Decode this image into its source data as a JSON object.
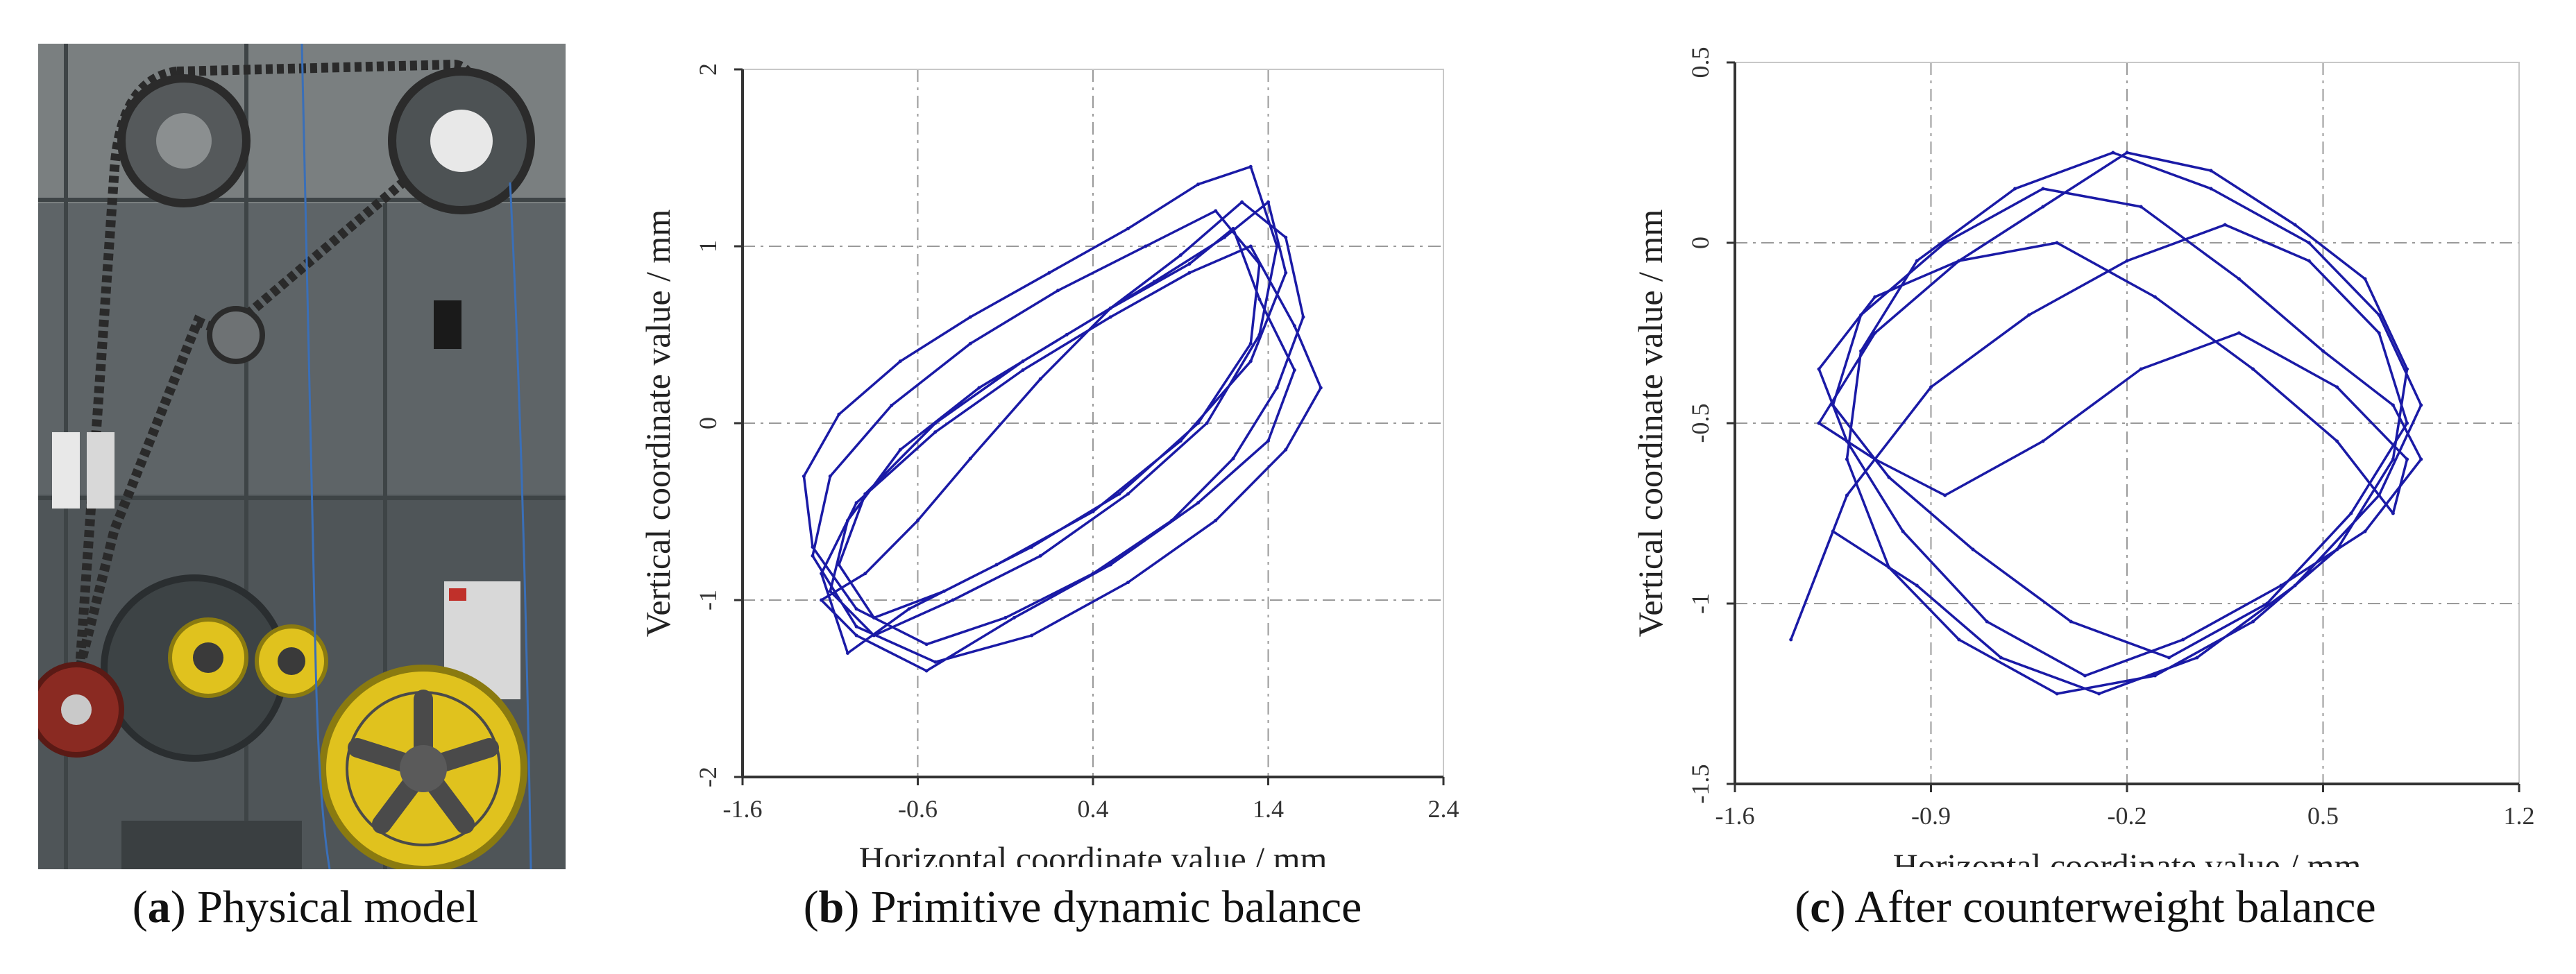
{
  "figure": {
    "panels": [
      {
        "letter": "a",
        "caption": "Physical model"
      },
      {
        "letter": "b",
        "caption": "Primitive dynamic balance"
      },
      {
        "letter": "c",
        "caption": "After counterweight balance"
      }
    ]
  },
  "colors": {
    "trace": "#1a1aa6",
    "grid": "#9a9a9a",
    "axis": "#333333",
    "machine_body": "#5d6366",
    "pulley_yellow": "#e0c21e",
    "pulley_red": "#8a2a22"
  },
  "chart_data": [
    {
      "type": "line",
      "panel": "b",
      "xlabel": "Horizontal coordinate value / mm",
      "ylabel": "Vertical coordinate value / mm",
      "xlim": [
        -1.6,
        2.4
      ],
      "ylim": [
        -2,
        2
      ],
      "xticks": [
        "-1.6",
        "-0.6",
        "0.4",
        "1.4",
        "2.4"
      ],
      "yticks": [
        "-2",
        "-1",
        "0",
        "1",
        "2"
      ],
      "grid": true,
      "series": [
        {
          "x": [
            -1.15,
            -0.9,
            -0.6,
            -0.3,
            0.1,
            0.5,
            0.9,
            1.25,
            1.5,
            1.6,
            1.45,
            1.2,
            0.85,
            0.4,
            -0.1,
            -0.55,
            -0.95,
            -1.2,
            -1.25,
            -1.05,
            -0.7,
            -0.3,
            0.15,
            0.6,
            1.0,
            1.3,
            1.45,
            1.35,
            1.05,
            0.6,
            0.1,
            -0.4,
            -0.85,
            -1.1,
            -1.0,
            -0.7,
            -0.25,
            0.25,
            0.75,
            1.15,
            1.4,
            1.5,
            1.3,
            0.9,
            0.4,
            -0.15,
            -0.65,
            -1.0,
            -1.15,
            -0.95,
            -0.5,
            0.0,
            0.5,
            0.95,
            1.3,
            1.55,
            1.7,
            1.5,
            1.1,
            0.6,
            0.05,
            -0.5,
            -0.95,
            -1.2,
            -1.1,
            -0.75,
            -0.3,
            0.2,
            0.7,
            1.1,
            1.35,
            1.3,
            1.0,
            0.55,
            0.05,
            -0.45,
            -0.85,
            -1.05,
            -0.9,
            -0.5,
            0.0,
            0.5,
            0.95,
            1.2,
            1.35,
            1.55,
            1.4,
            1.0,
            0.5,
            -0.05,
            -0.55,
            -0.95,
            -1.15
          ],
          "y": [
            -1.0,
            -0.85,
            -0.55,
            -0.2,
            0.25,
            0.65,
            0.95,
            1.25,
            1.05,
            0.6,
            0.2,
            -0.2,
            -0.55,
            -0.85,
            -1.1,
            -1.25,
            -1.05,
            -0.7,
            -0.3,
            0.05,
            0.35,
            0.6,
            0.85,
            1.1,
            1.35,
            1.45,
            1.0,
            0.5,
            0.0,
            -0.4,
            -0.75,
            -1.0,
            -1.2,
            -0.95,
            -0.55,
            -0.15,
            0.2,
            0.5,
            0.8,
            1.05,
            1.25,
            0.85,
            0.35,
            -0.1,
            -0.5,
            -0.8,
            -1.05,
            -1.3,
            -0.85,
            -0.45,
            -0.05,
            0.3,
            0.6,
            0.85,
            1.0,
            0.55,
            0.2,
            -0.15,
            -0.55,
            -0.9,
            -1.2,
            -1.35,
            -1.15,
            -0.75,
            -0.3,
            0.1,
            0.45,
            0.75,
            1.0,
            1.2,
            0.9,
            0.45,
            0.0,
            -0.4,
            -0.7,
            -0.95,
            -1.1,
            -0.8,
            -0.4,
            0.0,
            0.35,
            0.65,
            0.9,
            1.1,
            0.7,
            0.3,
            -0.1,
            -0.45,
            -0.8,
            -1.1,
            -1.4,
            -1.2,
            -1.0
          ]
        }
      ]
    },
    {
      "type": "line",
      "panel": "c",
      "xlabel": "Horizontal coordinate value / mm",
      "ylabel": "Vertical coordinate value / mm",
      "xlim": [
        -1.6,
        1.2
      ],
      "ylim": [
        -1.5,
        0.5
      ],
      "xticks": [
        "-1.6",
        "-0.9",
        "-0.2",
        "0.5",
        "1.2"
      ],
      "yticks": [
        "-1.5",
        "-1",
        "-0.5",
        "0",
        "0.5"
      ],
      "grid": true,
      "series": [
        {
          "x": [
            -1.3,
            -1.1,
            -0.8,
            -0.5,
            -0.2,
            0.1,
            0.4,
            0.65,
            0.8,
            0.75,
            0.55,
            0.25,
            -0.1,
            -0.45,
            -0.8,
            -1.05,
            -1.2,
            -1.15,
            -0.95,
            -0.6,
            -0.25,
            0.1,
            0.45,
            0.7,
            0.85,
            0.7,
            0.4,
            0.05,
            -0.3,
            -0.65,
            -0.95,
            -1.25,
            -1.4,
            -1.2,
            -0.9,
            -0.55,
            -0.2,
            0.15,
            0.45,
            0.7,
            0.8,
            0.6,
            0.3,
            -0.05,
            -0.4,
            -0.75,
            -1.05,
            -1.25,
            -1.15,
            -0.85,
            -0.5,
            -0.15,
            0.2,
            0.5,
            0.75,
            0.85,
            0.65,
            0.35,
            0.0,
            -0.35,
            -0.7,
            -1.0,
            -1.2,
            -1.3,
            -1.1,
            -0.8,
            -0.45,
            -0.1,
            0.25,
            0.55,
            0.75,
            0.8,
            0.55,
            0.2,
            -0.15,
            -0.5,
            -0.85,
            -1.1,
            -1.3
          ],
          "y": [
            -0.5,
            -0.25,
            -0.05,
            0.1,
            0.25,
            0.2,
            0.05,
            -0.1,
            -0.35,
            -0.6,
            -0.85,
            -1.05,
            -1.2,
            -1.25,
            -1.1,
            -0.9,
            -0.6,
            -0.3,
            -0.05,
            0.15,
            0.25,
            0.15,
            0.0,
            -0.2,
            -0.45,
            -0.7,
            -0.95,
            -1.15,
            -1.25,
            -1.15,
            -0.95,
            -0.8,
            -1.1,
            -0.7,
            -0.4,
            -0.2,
            -0.05,
            0.05,
            -0.05,
            -0.25,
            -0.5,
            -0.75,
            -1.0,
            -1.15,
            -1.05,
            -0.85,
            -0.65,
            -0.45,
            -0.2,
            0.0,
            0.15,
            0.1,
            -0.1,
            -0.3,
            -0.45,
            -0.6,
            -0.8,
            -0.95,
            -1.1,
            -1.2,
            -1.05,
            -0.8,
            -0.55,
            -0.35,
            -0.15,
            -0.05,
            0.0,
            -0.15,
            -0.35,
            -0.55,
            -0.75,
            -0.6,
            -0.4,
            -0.25,
            -0.35,
            -0.55,
            -0.7,
            -0.6,
            -0.5
          ]
        }
      ]
    }
  ]
}
